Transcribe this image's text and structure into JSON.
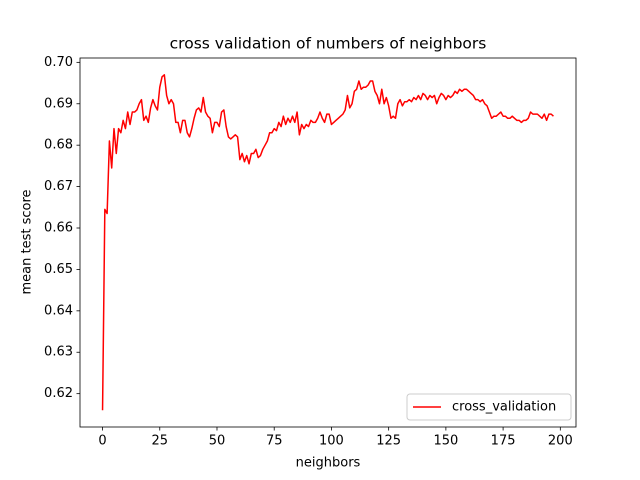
{
  "chart_data": {
    "type": "line",
    "title": "cross validation of numbers of neighbors",
    "x_label": "neighbors",
    "y_label": "mean test score",
    "x": [
      0,
      1,
      2,
      3,
      4,
      5,
      6,
      7,
      8,
      9,
      10,
      11,
      12,
      13,
      14,
      15,
      16,
      17,
      18,
      19,
      20,
      21,
      22,
      23,
      24,
      25,
      26,
      27,
      28,
      29,
      30,
      31,
      32,
      33,
      34,
      35,
      36,
      37,
      38,
      39,
      40,
      41,
      42,
      43,
      44,
      45,
      46,
      47,
      48,
      49,
      50,
      51,
      52,
      53,
      54,
      55,
      56,
      57,
      58,
      59,
      60,
      61,
      62,
      63,
      64,
      65,
      66,
      67,
      68,
      69,
      70,
      71,
      72,
      73,
      74,
      75,
      76,
      77,
      78,
      79,
      80,
      81,
      82,
      83,
      84,
      85,
      86,
      87,
      88,
      89,
      90,
      91,
      92,
      93,
      94,
      95,
      96,
      97,
      98,
      99,
      100,
      101,
      102,
      103,
      104,
      105,
      106,
      107,
      108,
      109,
      110,
      111,
      112,
      113,
      114,
      115,
      116,
      117,
      118,
      119,
      120,
      121,
      122,
      123,
      124,
      125,
      126,
      127,
      128,
      129,
      130,
      131,
      132,
      133,
      134,
      135,
      136,
      137,
      138,
      139,
      140,
      141,
      142,
      143,
      144,
      145,
      146,
      147,
      148,
      149,
      150,
      151,
      152,
      153,
      154,
      155,
      156,
      157,
      158,
      159,
      160,
      161,
      162,
      163,
      164,
      165,
      166,
      167,
      168,
      169,
      170,
      171,
      172,
      173,
      174,
      175,
      176,
      177,
      178,
      179,
      180,
      181,
      182,
      183,
      184,
      185,
      186,
      187,
      188,
      189,
      190,
      191,
      192,
      193,
      194,
      195,
      196,
      197
    ],
    "series": [
      {
        "name": "cross_validation",
        "color": "#ff0000",
        "values": [
          0.616,
          0.6645,
          0.6635,
          0.681,
          0.6745,
          0.684,
          0.678,
          0.684,
          0.683,
          0.686,
          0.684,
          0.688,
          0.685,
          0.688,
          0.688,
          0.6885,
          0.69,
          0.691,
          0.686,
          0.687,
          0.6855,
          0.689,
          0.691,
          0.6895,
          0.6885,
          0.694,
          0.6965,
          0.697,
          0.692,
          0.69,
          0.691,
          0.69,
          0.6855,
          0.6855,
          0.683,
          0.686,
          0.686,
          0.683,
          0.682,
          0.684,
          0.6865,
          0.6885,
          0.689,
          0.688,
          0.6915,
          0.688,
          0.687,
          0.6865,
          0.683,
          0.6855,
          0.6855,
          0.6845,
          0.688,
          0.6885,
          0.6845,
          0.682,
          0.6815,
          0.682,
          0.6825,
          0.682,
          0.6765,
          0.678,
          0.676,
          0.6775,
          0.6755,
          0.678,
          0.678,
          0.679,
          0.677,
          0.6775,
          0.679,
          0.68,
          0.681,
          0.683,
          0.683,
          0.684,
          0.6835,
          0.6855,
          0.6845,
          0.687,
          0.685,
          0.6865,
          0.6855,
          0.687,
          0.6855,
          0.688,
          0.6825,
          0.685,
          0.684,
          0.685,
          0.6845,
          0.686,
          0.6855,
          0.6855,
          0.6865,
          0.688,
          0.6865,
          0.6855,
          0.6875,
          0.6875,
          0.685,
          0.6855,
          0.686,
          0.6865,
          0.687,
          0.6875,
          0.6885,
          0.692,
          0.689,
          0.69,
          0.693,
          0.6935,
          0.6955,
          0.6935,
          0.694,
          0.694,
          0.6945,
          0.6955,
          0.6955,
          0.693,
          0.692,
          0.69,
          0.6935,
          0.69,
          0.6915,
          0.6895,
          0.6865,
          0.687,
          0.6865,
          0.69,
          0.691,
          0.6895,
          0.6905,
          0.6905,
          0.691,
          0.6905,
          0.6915,
          0.691,
          0.692,
          0.691,
          0.6925,
          0.692,
          0.691,
          0.692,
          0.6915,
          0.692,
          0.69,
          0.6915,
          0.6925,
          0.692,
          0.691,
          0.692,
          0.6915,
          0.692,
          0.693,
          0.6925,
          0.6935,
          0.693,
          0.6935,
          0.6935,
          0.693,
          0.6925,
          0.692,
          0.691,
          0.691,
          0.6905,
          0.691,
          0.69,
          0.6895,
          0.688,
          0.6865,
          0.687,
          0.687,
          0.6875,
          0.688,
          0.687,
          0.687,
          0.6865,
          0.6865,
          0.687,
          0.6865,
          0.686,
          0.686,
          0.6855,
          0.686,
          0.686,
          0.6865,
          0.688,
          0.6875,
          0.6875,
          0.6875,
          0.687,
          0.6865,
          0.6875,
          0.686,
          0.6875,
          0.6875,
          0.687
        ]
      }
    ],
    "xlim": [
      -9.85,
      206.85
    ],
    "ylim": [
      0.61195,
      0.70105
    ],
    "xticks": [
      0,
      25,
      50,
      75,
      100,
      125,
      150,
      175,
      200
    ],
    "yticks": [
      0.62,
      0.63,
      0.64,
      0.65,
      0.66,
      0.67,
      0.68,
      0.69,
      {
        "value": 0.7,
        "label": "0.70"
      }
    ],
    "legend": "lower right"
  }
}
